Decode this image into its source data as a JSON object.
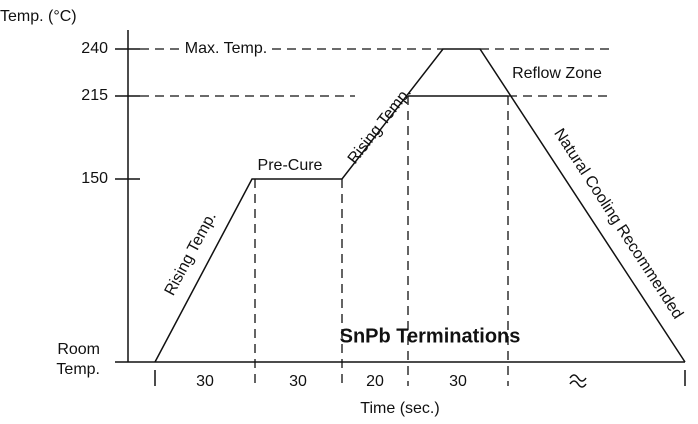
{
  "title": "SnPb Terminations",
  "axis": {
    "y_label": "Temp. (°C)",
    "x_label": "Time (sec.)",
    "y_ticks": [
      "240",
      "215",
      "150"
    ],
    "room_temp": [
      "Room",
      "Temp."
    ],
    "intervals": [
      "30",
      "30",
      "20",
      "30"
    ]
  },
  "annotations": {
    "max_temp": "Max. Temp.",
    "reflow_zone": "Reflow Zone",
    "pre_cure": "Pre-Cure",
    "rising_1": "Rising Temp.",
    "rising_2": "Rising Temp.",
    "cooling": "Natural Cooling Recommended"
  }
}
